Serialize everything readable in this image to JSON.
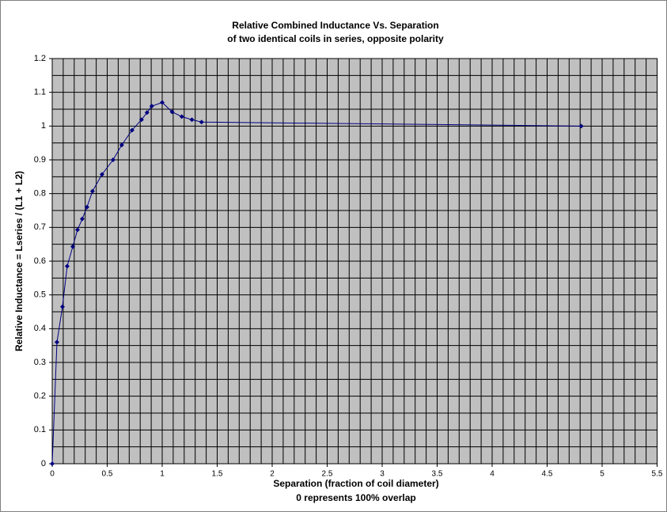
{
  "chart_data": {
    "type": "scatter",
    "title": [
      "Relative Combined Inductance Vs. Separation",
      "of two identical coils in series, opposite polarity"
    ],
    "xlabel": [
      "Separation (fraction of coil diameter)",
      "0 represents 100% overlap"
    ],
    "ylabel": "Relative Inductance = Lseries / (L1 + L2)",
    "series": [
      {
        "color": "#000080",
        "x": [
          0,
          0.043,
          0.093,
          0.136,
          0.187,
          0.23,
          0.273,
          0.316,
          0.366,
          0.453,
          0.553,
          0.632,
          0.726,
          0.812,
          0.862,
          0.905,
          1.0,
          1.09,
          1.178,
          1.27,
          1.358,
          4.81
        ],
        "values": [
          0,
          0.36,
          0.465,
          0.585,
          0.643,
          0.693,
          0.725,
          0.76,
          0.807,
          0.857,
          0.9,
          0.944,
          0.988,
          1.019,
          1.04,
          1.059,
          1.07,
          1.042,
          1.028,
          1.019,
          1.012,
          1.0
        ]
      }
    ],
    "xlim": [
      0,
      5.5
    ],
    "xticks": [
      0,
      0.5,
      1,
      1.5,
      2,
      2.5,
      3,
      3.5,
      4,
      4.5,
      5,
      5.5
    ],
    "ylim": [
      0,
      1.2
    ],
    "yticks": [
      0,
      0.1,
      0.2,
      0.3,
      0.4,
      0.5,
      0.6,
      0.7,
      0.8,
      0.9,
      1,
      1.1,
      1.2
    ],
    "grid": true,
    "plot_background": "#c0c0c0"
  }
}
